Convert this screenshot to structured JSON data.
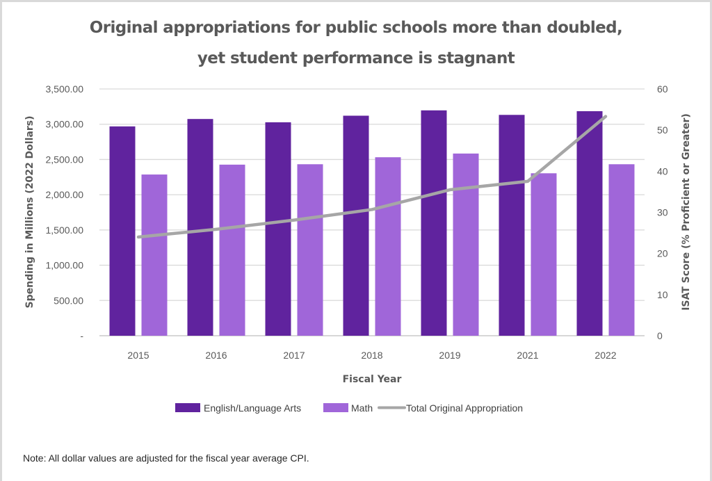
{
  "chart_data": {
    "type": "bar",
    "title": "Original appropriations for public schools more than doubled, yet student performance is stagnant",
    "title_lines": [
      "Original appropriations for public schools more than doubled,",
      "yet student performance is stagnant"
    ],
    "xlabel": "Fiscal Year",
    "ylabel_left": "Spending in Millions (2022 Dollars)",
    "ylabel_right": "ISAT Score (% Proficient or Greater)",
    "categories": [
      "2015",
      "2016",
      "2017",
      "2018",
      "2019",
      "2021",
      "2022"
    ],
    "left_axis": {
      "range": [
        0,
        3500
      ],
      "ticks": [
        0,
        500,
        1000,
        1500,
        2000,
        2500,
        3000,
        3500
      ],
      "tick_labels": [
        "-",
        "500.00",
        "1,000.00",
        "1,500.00",
        "2,000.00",
        "2,500.00",
        "3,000.00",
        "3,500.00"
      ]
    },
    "right_axis": {
      "range": [
        0,
        60
      ],
      "ticks": [
        0,
        10,
        20,
        30,
        40,
        50,
        60
      ],
      "tick_labels": [
        "0",
        "10",
        "20",
        "30",
        "40",
        "50",
        "60"
      ]
    },
    "grid": true,
    "legend_position": "bottom",
    "series": [
      {
        "name": "English/Language Arts",
        "type": "bar",
        "axis": "right",
        "color": "#60239e",
        "values": [
          50.9,
          52.7,
          51.9,
          53.5,
          54.8,
          53.7,
          54.6
        ]
      },
      {
        "name": "Math",
        "type": "bar",
        "axis": "right",
        "color": "#a066d9",
        "values": [
          39.2,
          41.6,
          41.7,
          43.4,
          44.3,
          39.5,
          41.7
        ]
      },
      {
        "name": "Total Original Appropriation",
        "type": "line",
        "axis": "left",
        "color": "#a6a6a6",
        "values": [
          1400,
          1510,
          1640,
          1790,
          2070,
          2190,
          3110
        ]
      }
    ],
    "note": "Note: All dollar values are adjusted for the fiscal year average CPI."
  }
}
